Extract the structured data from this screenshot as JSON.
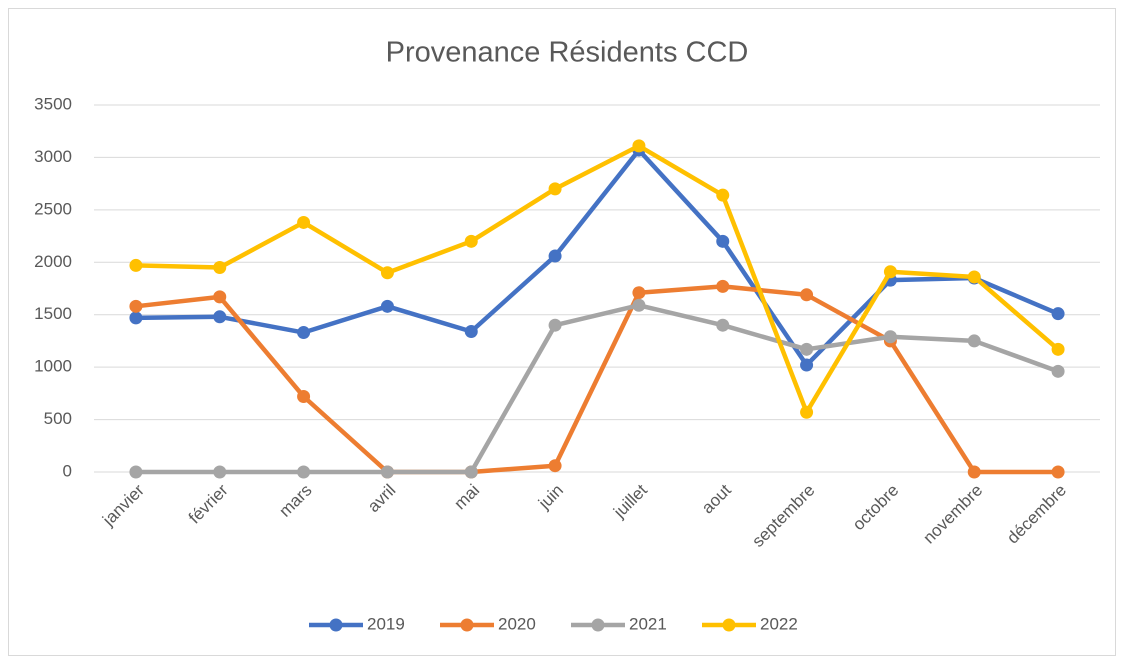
{
  "chart_data": {
    "type": "line",
    "title": "Provenance Résidents CCD",
    "categories": [
      "janvier",
      "février",
      "mars",
      "avril",
      "mai",
      "juin",
      "juillet",
      "aout",
      "septembre",
      "octobre",
      "novembre",
      "décembre"
    ],
    "series": [
      {
        "name": "2019",
        "color": "#4472c4",
        "values": [
          1470,
          1480,
          1330,
          1580,
          1340,
          2060,
          3070,
          2200,
          1020,
          1830,
          1850,
          1510
        ]
      },
      {
        "name": "2020",
        "color": "#ed7d31",
        "values": [
          1580,
          1670,
          720,
          0,
          0,
          60,
          1710,
          1770,
          1690,
          1250,
          0,
          0
        ]
      },
      {
        "name": "2021",
        "color": "#a5a5a5",
        "values": [
          0,
          0,
          0,
          0,
          0,
          1400,
          1590,
          1400,
          1170,
          1290,
          1250,
          960
        ]
      },
      {
        "name": "2022",
        "color": "#ffc000",
        "values": [
          1970,
          1950,
          2380,
          1900,
          2200,
          2700,
          3110,
          2640,
          570,
          1910,
          1860,
          1170
        ]
      }
    ],
    "ylim": [
      0,
      3500
    ],
    "yticks": [
      0,
      500,
      1000,
      1500,
      2000,
      2500,
      3000,
      3500
    ],
    "grid": true,
    "legend": "bottom"
  }
}
